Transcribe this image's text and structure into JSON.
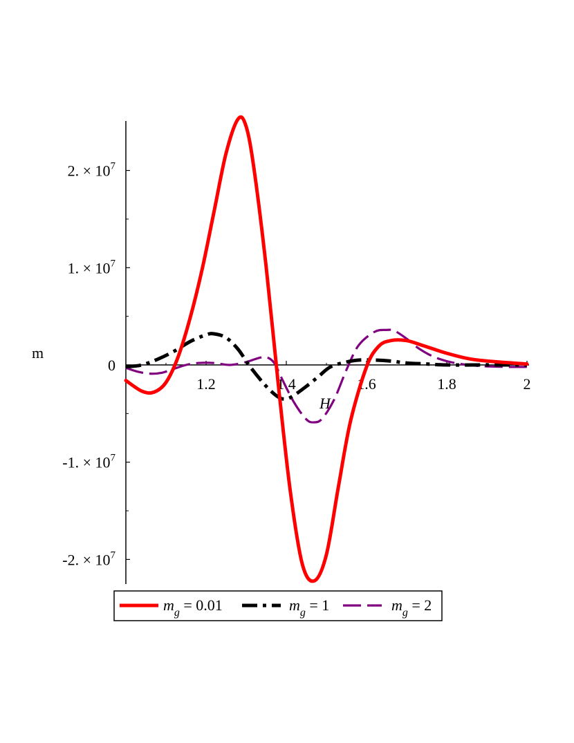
{
  "chart_data": {
    "type": "line",
    "xlabel": "H",
    "ylabel": "m",
    "xlim": [
      1.0,
      2.0
    ],
    "ylim": [
      -22500000,
      25500000
    ],
    "x_ticks": [
      {
        "value": 1.2,
        "label": "1.2"
      },
      {
        "value": 1.4,
        "label": "1.4"
      },
      {
        "value": 1.6,
        "label": "1.6"
      },
      {
        "value": 1.8,
        "label": "1.8"
      },
      {
        "value": 2.0,
        "label": "2"
      }
    ],
    "y_ticks": [
      {
        "value": 20000000,
        "label": "2. × 10",
        "exp": "7"
      },
      {
        "value": 10000000,
        "label": "1. × 10",
        "exp": "7"
      },
      {
        "value": 0,
        "label": "0",
        "exp": ""
      },
      {
        "value": -10000000,
        "label": "-1. × 10",
        "exp": "7"
      },
      {
        "value": -20000000,
        "label": "-2. × 10",
        "exp": "7"
      }
    ],
    "legend_position": "bottom",
    "series": [
      {
        "name": "m_g = 0.01",
        "legend_main": "m",
        "legend_sub": "g",
        "legend_rest": " = 0.01",
        "color": "#ff0000",
        "style": "solid",
        "x": [
          1.0,
          1.04,
          1.07,
          1.1,
          1.13,
          1.16,
          1.19,
          1.22,
          1.25,
          1.28,
          1.3,
          1.32,
          1.35,
          1.38,
          1.41,
          1.44,
          1.47,
          1.5,
          1.53,
          1.56,
          1.6,
          1.63,
          1.66,
          1.7,
          1.74,
          1.8,
          1.86,
          1.93,
          2.0
        ],
        "y": [
          -1600000,
          -2700000,
          -2800000,
          -1800000,
          800000,
          4800000,
          9800000,
          15800000,
          21800000,
          25300000,
          24500000,
          20000000,
          10000000,
          -2000000,
          -13000000,
          -20500000,
          -22200000,
          -19500000,
          -12500000,
          -5800000,
          -200000,
          1900000,
          2500000,
          2500000,
          2000000,
          1200000,
          600000,
          300000,
          100000
        ]
      },
      {
        "name": "m_g = 1",
        "legend_main": "m",
        "legend_sub": "g",
        "legend_rest": " = 1",
        "color": "#000000",
        "style": "dashdot",
        "x": [
          1.0,
          1.04,
          1.08,
          1.12,
          1.16,
          1.2,
          1.22,
          1.25,
          1.28,
          1.31,
          1.35,
          1.38,
          1.4,
          1.42,
          1.45,
          1.48,
          1.51,
          1.55,
          1.58,
          1.62,
          1.66,
          1.7,
          1.75,
          1.8,
          1.9,
          2.0
        ],
        "y": [
          -200000,
          0,
          600000,
          1400000,
          2400000,
          3100000,
          3200000,
          2800000,
          1600000,
          -200000,
          -2200000,
          -3300000,
          -3500000,
          -3100000,
          -2200000,
          -1200000,
          -200000,
          300000,
          500000,
          500000,
          400000,
          200000,
          100000,
          0,
          0,
          0
        ]
      },
      {
        "name": "m_g = 2",
        "legend_main": "m",
        "legend_sub": "g",
        "legend_rest": " = 2",
        "color": "#800080",
        "style": "dashed",
        "x": [
          1.0,
          1.03,
          1.06,
          1.09,
          1.12,
          1.15,
          1.18,
          1.22,
          1.26,
          1.3,
          1.33,
          1.35,
          1.37,
          1.39,
          1.42,
          1.45,
          1.47,
          1.49,
          1.52,
          1.55,
          1.58,
          1.62,
          1.65,
          1.67,
          1.7,
          1.73,
          1.77,
          1.82,
          1.88,
          1.95,
          2.0
        ],
        "y": [
          -300000,
          -700000,
          -900000,
          -800000,
          -400000,
          0,
          200000,
          200000,
          0,
          300000,
          700000,
          800000,
          200000,
          -1500000,
          -3900000,
          -5600000,
          -5900000,
          -5500000,
          -3500000,
          -500000,
          2000000,
          3400000,
          3600000,
          3500000,
          2700000,
          1700000,
          800000,
          200000,
          -100000,
          -200000,
          -200000
        ]
      }
    ]
  }
}
